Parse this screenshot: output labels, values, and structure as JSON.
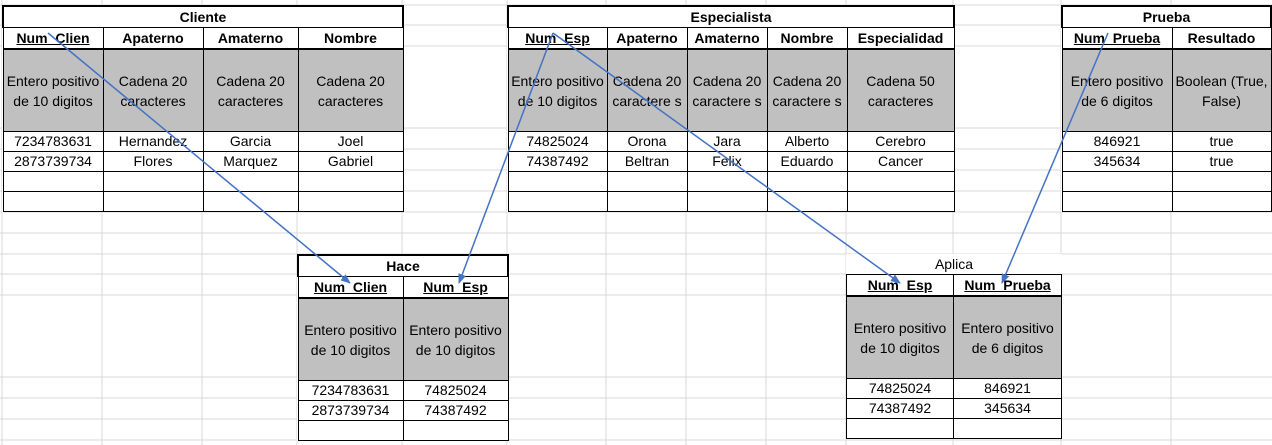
{
  "tables": {
    "cliente": {
      "title": "Cliente",
      "headers": [
        "Num_Clien",
        "Apaterno",
        "Amaterno",
        "Nombre"
      ],
      "types": [
        "Entero positivo de 10 digitos",
        "Cadena 20 caracteres",
        "Cadena 20 caracteres",
        "Cadena 20 caracteres"
      ],
      "rows": [
        [
          "7234783631",
          "Hernandez",
          "Garcia",
          "Joel"
        ],
        [
          "2873739734",
          "Flores",
          "Marquez",
          "Gabriel"
        ]
      ]
    },
    "especialista": {
      "title": "Especialista",
      "headers": [
        "Num_Esp",
        "Apaterno",
        "Amaterno",
        "Nombre",
        "Especialidad"
      ],
      "types": [
        "Entero positivo de 10 digitos",
        "Cadena 20 caractere s",
        "Cadena 20 caractere s",
        "Cadena 20 caractere s",
        "Cadena 50 caracteres"
      ],
      "rows": [
        [
          "74825024",
          "Orona",
          "Jara",
          "Alberto",
          "Cerebro"
        ],
        [
          "74387492",
          "Beltran",
          "Felix",
          "Eduardo",
          "Cancer"
        ]
      ]
    },
    "prueba": {
      "title": "Prueba",
      "headers": [
        "Num_Prueba",
        "Resultado"
      ],
      "types": [
        "Entero positivo de 6 digitos",
        "Boolean (True, False)"
      ],
      "rows": [
        [
          "846921",
          "true"
        ],
        [
          "345634",
          "true"
        ]
      ]
    },
    "hace": {
      "title": "Hace",
      "headers": [
        "Num_Clien",
        "Num_Esp"
      ],
      "types": [
        "Entero positivo de 10 digitos",
        "Entero positivo de 10 digitos"
      ],
      "rows": [
        [
          "7234783631",
          "74825024"
        ],
        [
          "2873739734",
          "74387492"
        ]
      ]
    },
    "aplica": {
      "title": "Aplica",
      "headers": [
        "Num_Esp",
        "Num_Prueba"
      ],
      "types": [
        "Entero positivo de 10 digitos",
        "Entero positivo de 6 digitos"
      ],
      "rows": [
        [
          "74825024",
          "846921"
        ],
        [
          "74387492",
          "345634"
        ]
      ]
    }
  },
  "colors": {
    "arrow": "#4472c4",
    "type_fill": "#c0c0c0",
    "grid": "#d9d9d9"
  }
}
